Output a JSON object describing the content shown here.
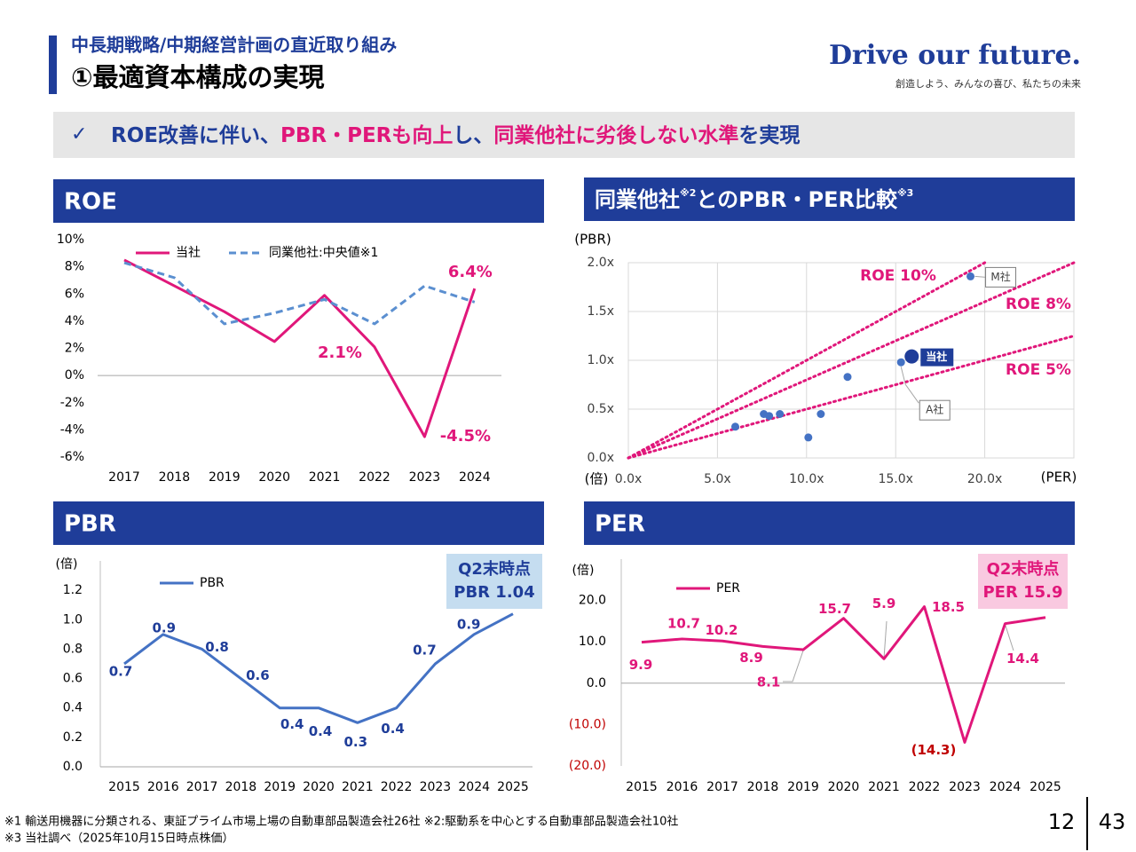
{
  "header": {
    "subtitle": "中長期戦略/中期経営計画の直近取り組み",
    "title": "①最適資本構成の実現",
    "brand": "Drive our future.",
    "tagline": "創造しよう、みんなの喜び、私たちの未来"
  },
  "banner": {
    "mark": "✓",
    "segments": [
      {
        "text": "ROE改善に伴い、",
        "color": "#1f3d99"
      },
      {
        "text": "PBR・PERも向上",
        "color": "#e0177a"
      },
      {
        "text": "し、",
        "color": "#1f3d99"
      },
      {
        "text": "同業他社に劣後しない水準",
        "color": "#e0177a"
      },
      {
        "text": "を実現",
        "color": "#1f3d99"
      }
    ]
  },
  "chart_data": [
    {
      "type": "line",
      "title": "ROE",
      "categories": [
        "2017",
        "2018",
        "2019",
        "2020",
        "2021",
        "2022",
        "2023",
        "2024"
      ],
      "series": [
        {
          "name": "当社",
          "color": "#e0177a",
          "values": [
            8.5,
            6.6,
            4.7,
            2.5,
            5.9,
            2.1,
            -4.5,
            6.4
          ],
          "value_labels": [
            null,
            null,
            null,
            null,
            null,
            "2.1%",
            "-4.5%",
            "6.4%"
          ]
        },
        {
          "name": "同業他社:中央値※1",
          "color": "#5b8fd0",
          "dashed": true,
          "values": [
            8.3,
            7.2,
            3.8,
            4.6,
            5.6,
            3.8,
            6.6,
            5.4
          ]
        }
      ],
      "ylim": [
        -6,
        10
      ],
      "yticks": [
        {
          "value": 10,
          "label": "10%"
        },
        {
          "value": 8,
          "label": "8%"
        },
        {
          "value": 6,
          "label": "6%"
        },
        {
          "value": 4,
          "label": "4%"
        },
        {
          "value": 2,
          "label": "2%"
        },
        {
          "value": 0,
          "label": "0%"
        },
        {
          "value": -2,
          "label": "-2%"
        },
        {
          "value": -4,
          "label": "-4%"
        },
        {
          "value": -6,
          "label": "-6%"
        }
      ]
    },
    {
      "type": "scatter",
      "title_parts": [
        "同業他社",
        "※2",
        "とのPBR・PER比較",
        "※3"
      ],
      "y_label": "(PBR)",
      "y_unit": "(倍)",
      "x_label": "(PER)",
      "xlim": [
        0,
        25
      ],
      "xticks": [
        {
          "value": 0,
          "label": "0.0x"
        },
        {
          "value": 5,
          "label": "5.0x"
        },
        {
          "value": 10,
          "label": "10.0x"
        },
        {
          "value": 15,
          "label": "15.0x"
        },
        {
          "value": 20,
          "label": "20.0x"
        }
      ],
      "ylim": [
        0,
        2
      ],
      "yticks": [
        {
          "value": 0,
          "label": "0.0x"
        },
        {
          "value": 0.5,
          "label": "0.5x"
        },
        {
          "value": 1,
          "label": "1.0x"
        },
        {
          "value": 1.5,
          "label": "1.5x"
        },
        {
          "value": 2,
          "label": "2.0x"
        }
      ],
      "grid": true,
      "series": [
        {
          "color": "#4472c4",
          "x": [
            6.0,
            7.6,
            7.9,
            8.5,
            10.1,
            10.8,
            12.3,
            15.3,
            19.2
          ],
          "y": [
            0.32,
            0.45,
            0.43,
            0.45,
            0.21,
            0.45,
            0.83,
            0.98,
            1.86
          ],
          "point_labels": [
            null,
            null,
            null,
            null,
            null,
            null,
            null,
            "A社",
            "M社"
          ]
        },
        {
          "name": "当社",
          "color": "#1f3d99",
          "x": [
            15.9
          ],
          "y": [
            1.04
          ]
        }
      ],
      "reference_lines": [
        {
          "label": "ROE 10%",
          "slope": 0.1,
          "color": "#e0177a"
        },
        {
          "label": "ROE 8%",
          "slope": 0.08,
          "color": "#e0177a"
        },
        {
          "label": "ROE 5%",
          "slope": 0.05,
          "color": "#e0177a"
        }
      ]
    },
    {
      "type": "line",
      "title": "PBR",
      "y_unit": "(倍)",
      "categories": [
        "2015",
        "2016",
        "2017",
        "2018",
        "2019",
        "2020",
        "2021",
        "2022",
        "2023",
        "2024",
        "2025"
      ],
      "series": [
        {
          "name": "PBR",
          "color": "#4472c4",
          "label_color": "#1f3d99",
          "values": [
            0.7,
            0.9,
            0.8,
            0.6,
            0.4,
            0.4,
            0.3,
            0.4,
            0.7,
            0.9,
            1.04
          ],
          "value_labels": [
            "0.7",
            "0.9",
            "0.8",
            "0.6",
            "0.4",
            "0.4",
            "0.3",
            "0.4",
            "0.7",
            "0.9",
            null
          ]
        }
      ],
      "ylim": [
        0,
        1.4
      ],
      "yticks": [
        {
          "value": 0,
          "label": "0.0"
        },
        0.2,
        0.4,
        0.6,
        0.8,
        {
          "value": 1,
          "label": "1.0"
        },
        1.2
      ],
      "callout": {
        "lines": [
          "Q2末時点",
          "PBR 1.04"
        ],
        "color": "#1f3d99",
        "fill": "#c5ddf0"
      }
    },
    {
      "type": "line",
      "title": "PER",
      "y_unit": "(倍)",
      "categories": [
        "2015",
        "2016",
        "2017",
        "2018",
        "2019",
        "2020",
        "2021",
        "2022",
        "2023",
        "2024",
        "2025"
      ],
      "series": [
        {
          "name": "PER",
          "color": "#e0177a",
          "values": [
            9.9,
            10.7,
            10.2,
            8.9,
            8.1,
            15.7,
            5.9,
            18.5,
            -14.3,
            14.4,
            15.9
          ],
          "value_labels": [
            "9.9",
            "10.7",
            "10.2",
            "8.9",
            "8.1",
            "15.7",
            "5.9",
            "18.5",
            "(14.3)",
            "14.4",
            null
          ]
        }
      ],
      "ylim": [
        -20,
        30
      ],
      "yticks": [
        {
          "value": 20,
          "label": "20.0"
        },
        {
          "value": 10,
          "label": "10.0"
        },
        {
          "value": 0,
          "label": "0.0"
        },
        {
          "value": -10,
          "label": "(10.0)"
        },
        {
          "value": -20,
          "label": "(20.0)"
        }
      ],
      "negative_color": "#c00000",
      "callout": {
        "lines": [
          "Q2末時点",
          "PER 15.9"
        ],
        "color": "#e0177a",
        "fill": "#f9c9e0"
      }
    }
  ],
  "footnotes": [
    "※1 輸送用機器に分類される、東証プライム市場上場の自動車部品製造会社26社 ※2:駆動系を中心とする自動車部品製造会社10社",
    "※3 当社調べ（2025年10月15日時点株価）"
  ],
  "page_numbers": [
    "12",
    "43"
  ]
}
